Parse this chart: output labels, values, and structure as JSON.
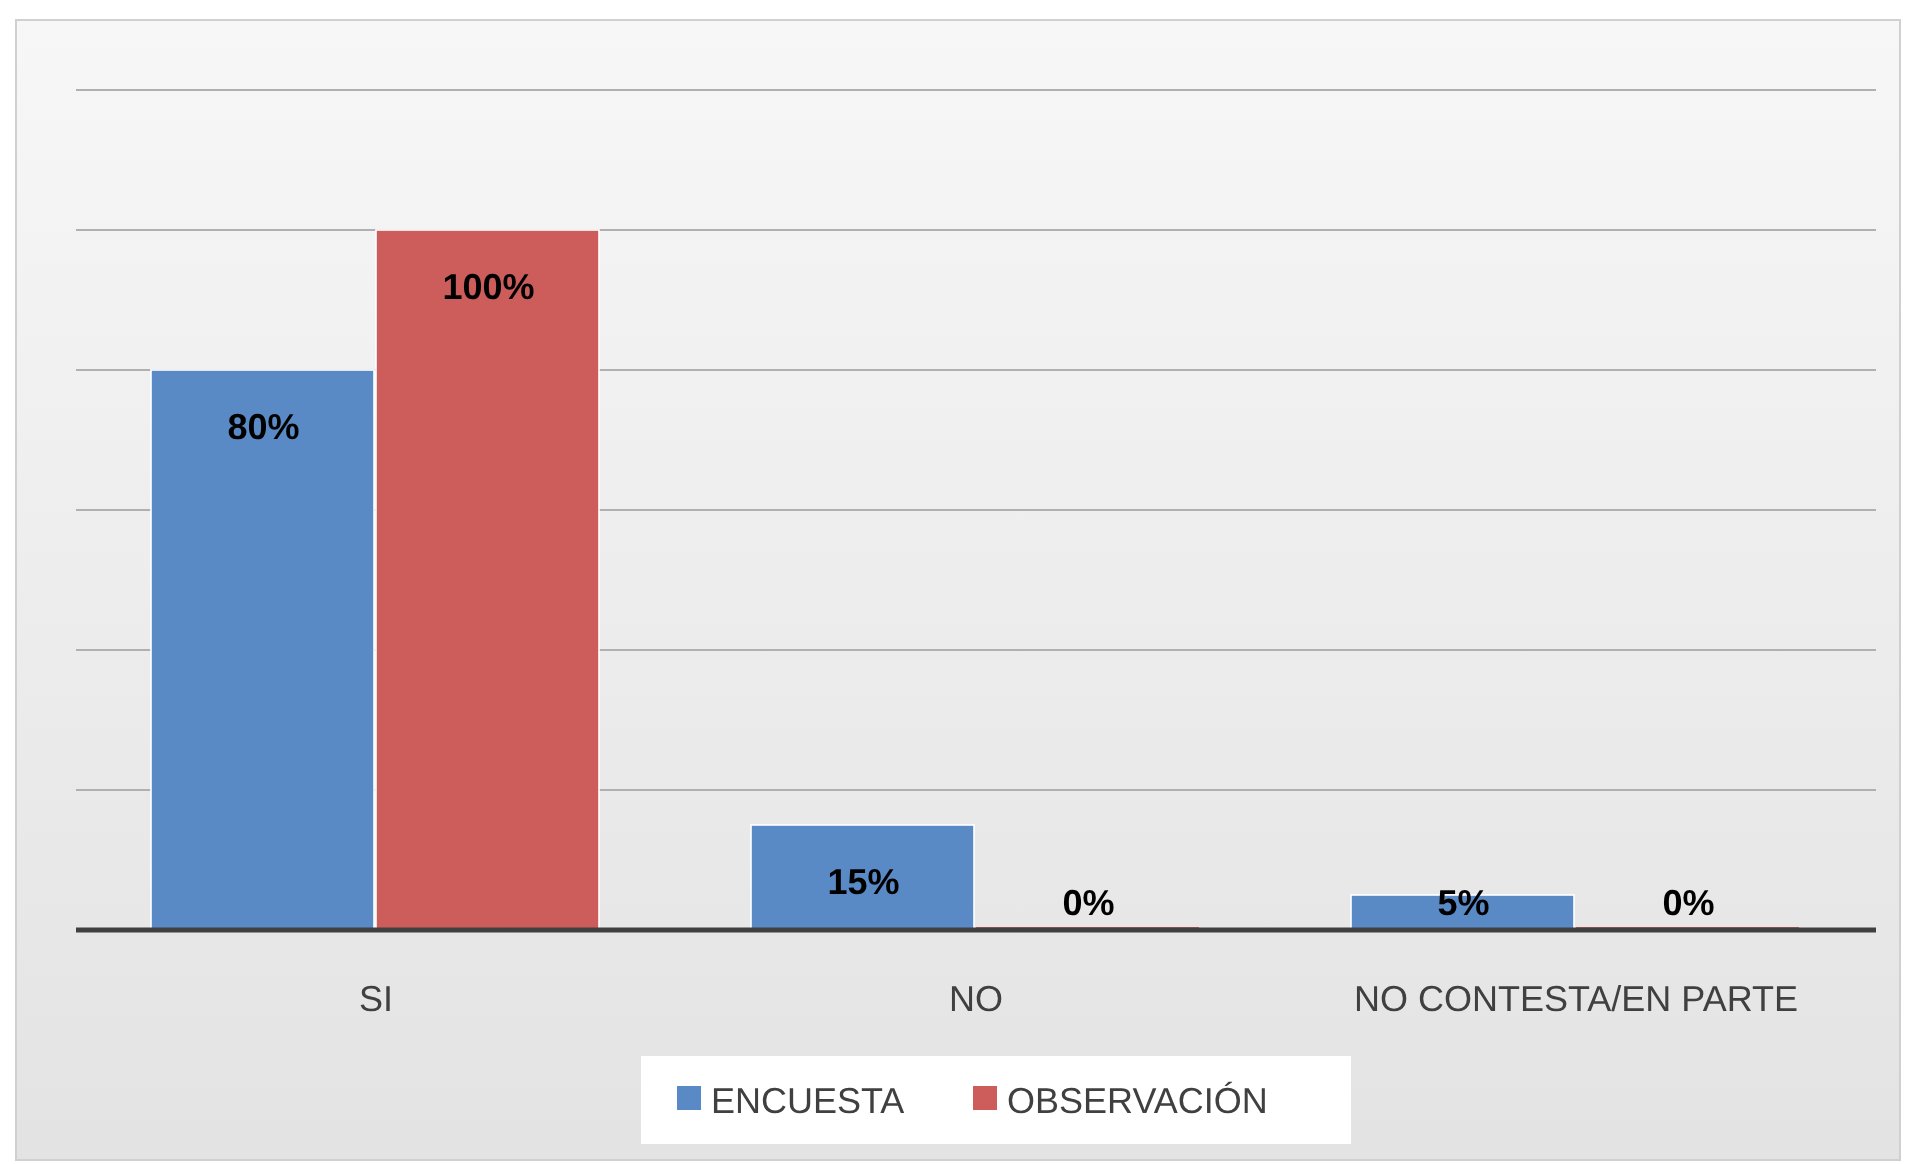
{
  "chart_data": {
    "type": "bar",
    "categories": [
      "SI",
      "NO",
      "NO CONTESTA/EN PARTE"
    ],
    "series": [
      {
        "name": "ENCUESTA",
        "color": "#5a8ac6",
        "values": [
          80,
          15,
          5
        ],
        "value_labels": [
          "80%",
          "15%",
          "5%"
        ]
      },
      {
        "name": "OBSERVACIÓN",
        "color": "#cd5d5b",
        "values": [
          100,
          0,
          0
        ],
        "value_labels": [
          "100%",
          "0%",
          "0%"
        ]
      }
    ],
    "ylim": [
      0,
      120
    ],
    "yticks": [
      {
        "value": 0,
        "label": null
      },
      {
        "value": 20,
        "label": null
      },
      {
        "value": 40,
        "label": null
      },
      {
        "value": 60,
        "label": null
      },
      {
        "value": 80,
        "label": null
      },
      {
        "value": 100,
        "label": null
      },
      {
        "value": 120,
        "label": null
      }
    ],
    "tick_labels": "x",
    "grid": "y",
    "legend": "bottom"
  }
}
